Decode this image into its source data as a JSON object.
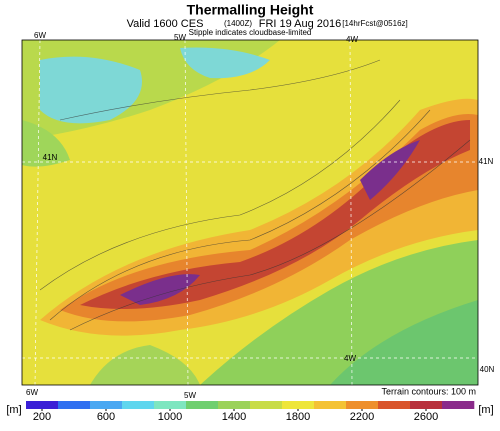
{
  "header": {
    "title": "Thermalling Height",
    "valid": "Valid 1600 CES",
    "zulu": "(1400Z)",
    "date": "FRI 19 Aug 2016",
    "forecast": "[14hrFcst@0516z]",
    "note": "Stipple indicates cloudbase-limited"
  },
  "map": {
    "labels": [
      "6W",
      "5W",
      "4W",
      "41N",
      "41N",
      "4W",
      "40N",
      "6W",
      "5W"
    ],
    "terrain_note": "Terrain contours: 100 m"
  },
  "colorbar": {
    "unit": "[m]",
    "lim": [
      100,
      2900
    ],
    "ticks": [
      200,
      600,
      1000,
      1400,
      1800,
      2200,
      2600
    ],
    "colors": [
      "#3a1fd6",
      "#2f6ff0",
      "#4aa8f2",
      "#5fd6ee",
      "#7ee6c0",
      "#6fcf6f",
      "#9bd25a",
      "#c8dc46",
      "#eee63a",
      "#f4c234",
      "#ee8f2c",
      "#d9542a",
      "#b8303c",
      "#8a2a8a"
    ]
  }
}
